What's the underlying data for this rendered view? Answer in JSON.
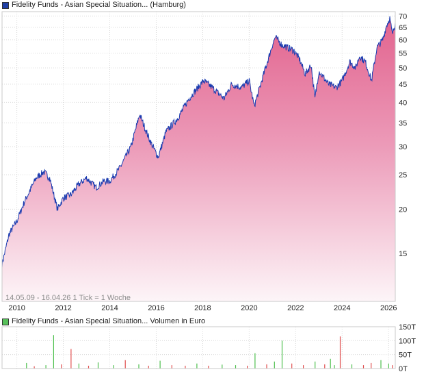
{
  "price_legend": {
    "label": "Fidelity Funds - Asian Special Situation... (Hamburg)",
    "color": "#1f3fa6"
  },
  "volume_legend": {
    "label": "Fidelity Funds - Asian Special Situation... Volumen in Euro",
    "color": "#57c05a"
  },
  "info_text": "14.05.09 - 16.04.26   1 Tick = 1 Woche",
  "watermark": "",
  "colors": {
    "line": "#1a3bb0",
    "area_top": "#e2638e",
    "area_bottom": "#fdf5f8",
    "grid": "#d9d9d9",
    "vol_up": "#4cbf4c",
    "vol_down": "#e05050"
  },
  "chart_data": [
    {
      "type": "area",
      "title": "Fidelity Funds - Asian Special Situation... (Hamburg)",
      "scale": "log",
      "ylim": [
        11,
        72
      ],
      "xlim": [
        "2009-05-14",
        "2026-04-16"
      ],
      "y_ticks": [
        15,
        20,
        25,
        30,
        35,
        40,
        45,
        50,
        55,
        60,
        65,
        70
      ],
      "x_ticks": [
        "2010",
        "2012",
        "2014",
        "2016",
        "2018",
        "2020",
        "2022",
        "2024",
        "2026"
      ],
      "grid": true,
      "series": [
        {
          "name": "Fidelity Funds - Asian Special Situation... (Hamburg)",
          "points": [
            [
              "2009-05-14",
              14.0
            ],
            [
              "2009-09-01",
              17.0
            ],
            [
              "2010-01-01",
              18.5
            ],
            [
              "2010-05-01",
              21.0
            ],
            [
              "2010-11-01",
              24.5
            ],
            [
              "2011-03-01",
              25.5
            ],
            [
              "2011-06-01",
              24.5
            ],
            [
              "2011-10-01",
              20.0
            ],
            [
              "2012-01-01",
              21.5
            ],
            [
              "2012-05-01",
              22.0
            ],
            [
              "2012-09-01",
              23.5
            ],
            [
              "2013-01-01",
              24.5
            ],
            [
              "2013-06-01",
              23.0
            ],
            [
              "2013-10-01",
              24.0
            ],
            [
              "2014-01-01",
              24.0
            ],
            [
              "2014-06-01",
              26.0
            ],
            [
              "2014-12-01",
              30.0
            ],
            [
              "2015-04-15",
              37.0
            ],
            [
              "2015-08-01",
              33.0
            ],
            [
              "2015-10-01",
              31.0
            ],
            [
              "2016-02-01",
              28.0
            ],
            [
              "2016-06-01",
              33.0
            ],
            [
              "2016-12-01",
              36.0
            ],
            [
              "2017-06-01",
              41.0
            ],
            [
              "2018-01-15",
              46.0
            ],
            [
              "2018-06-01",
              44.0
            ],
            [
              "2018-12-01",
              41.0
            ],
            [
              "2019-04-01",
              45.0
            ],
            [
              "2019-09-01",
              44.0
            ],
            [
              "2020-01-01",
              46.0
            ],
            [
              "2020-03-20",
              39.0
            ],
            [
              "2020-08-01",
              47.0
            ],
            [
              "2021-01-01",
              58.0
            ],
            [
              "2021-02-15",
              61.0
            ],
            [
              "2021-06-01",
              58.0
            ],
            [
              "2021-12-01",
              56.0
            ],
            [
              "2022-03-01",
              53.0
            ],
            [
              "2022-06-01",
              48.0
            ],
            [
              "2022-09-01",
              51.0
            ],
            [
              "2022-10-31",
              41.0
            ],
            [
              "2023-01-01",
              49.0
            ],
            [
              "2023-06-01",
              45.0
            ],
            [
              "2023-10-01",
              44.0
            ],
            [
              "2024-01-01",
              46.0
            ],
            [
              "2024-05-01",
              52.0
            ],
            [
              "2024-08-01",
              50.0
            ],
            [
              "2024-10-01",
              54.0
            ],
            [
              "2025-01-01",
              52.0
            ],
            [
              "2025-04-08",
              46.0
            ],
            [
              "2025-07-01",
              57.0
            ],
            [
              "2025-10-01",
              60.0
            ],
            [
              "2025-12-01",
              66.0
            ],
            [
              "2026-01-20",
              69.0
            ],
            [
              "2026-03-01",
              62.0
            ],
            [
              "2026-04-16",
              67.0
            ]
          ]
        }
      ]
    },
    {
      "type": "bar",
      "title": "Fidelity Funds - Asian Special Situation... Volumen in Euro",
      "ylim": [
        0,
        150000
      ],
      "y_ticks": [
        "0T",
        "50T",
        "100T",
        "150T"
      ],
      "grid": true,
      "series": [
        {
          "name": "Fidelity Funds - Asian Special Situation... Volumen in Euro",
          "points": [
            [
              "2010-06-01",
              20000,
              "up"
            ],
            [
              "2010-10-01",
              8000,
              "down"
            ],
            [
              "2011-04-01",
              12000,
              "up"
            ],
            [
              "2011-08-01",
              120000,
              "up"
            ],
            [
              "2011-12-01",
              15000,
              "down"
            ],
            [
              "2012-05-01",
              70000,
              "down"
            ],
            [
              "2012-09-01",
              18000,
              "up"
            ],
            [
              "2013-02-01",
              10000,
              "down"
            ],
            [
              "2013-07-01",
              22000,
              "up"
            ],
            [
              "2014-03-01",
              12000,
              "up"
            ],
            [
              "2014-09-01",
              30000,
              "down"
            ],
            [
              "2015-04-01",
              15000,
              "up"
            ],
            [
              "2015-09-01",
              10000,
              "down"
            ],
            [
              "2016-03-01",
              28000,
              "up"
            ],
            [
              "2016-09-01",
              12000,
              "down"
            ],
            [
              "2017-04-01",
              10000,
              "down"
            ],
            [
              "2017-10-01",
              18000,
              "up"
            ],
            [
              "2018-04-01",
              10000,
              "down"
            ],
            [
              "2018-11-01",
              14000,
              "up"
            ],
            [
              "2019-06-01",
              12000,
              "up"
            ],
            [
              "2019-12-01",
              10000,
              "down"
            ],
            [
              "2020-04-01",
              55000,
              "up"
            ],
            [
              "2020-10-01",
              15000,
              "down"
            ],
            [
              "2021-02-01",
              25000,
              "up"
            ],
            [
              "2021-06-01",
              100000,
              "up"
            ],
            [
              "2021-11-01",
              18000,
              "down"
            ],
            [
              "2022-05-01",
              12000,
              "down"
            ],
            [
              "2022-11-01",
              25000,
              "up"
            ],
            [
              "2023-04-01",
              15000,
              "down"
            ],
            [
              "2023-07-01",
              35000,
              "up"
            ],
            [
              "2023-09-01",
              12000,
              "up"
            ],
            [
              "2023-12-01",
              115000,
              "down"
            ],
            [
              "2024-06-01",
              15000,
              "up"
            ],
            [
              "2024-12-01",
              12000,
              "down"
            ],
            [
              "2025-04-01",
              20000,
              "down"
            ],
            [
              "2025-09-01",
              30000,
              "up"
            ],
            [
              "2026-01-01",
              18000,
              "up"
            ],
            [
              "2026-03-01",
              12000,
              "down"
            ]
          ]
        }
      ]
    }
  ]
}
